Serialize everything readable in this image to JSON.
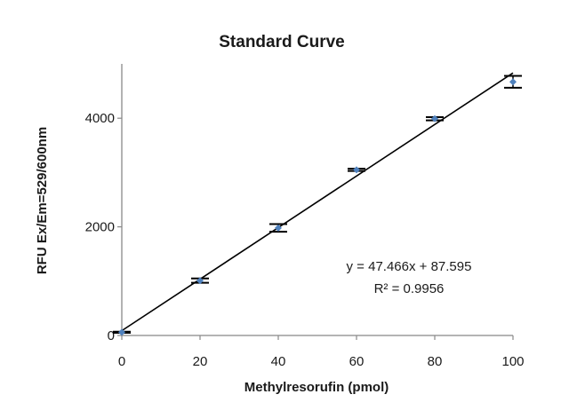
{
  "chart_data": {
    "type": "scatter",
    "title": "Standard Curve",
    "xlabel": "Methylresorufin (pmol)",
    "ylabel": "RFU Ex/Em=529/600nm",
    "xlim": [
      0,
      100
    ],
    "ylim": [
      0,
      5000
    ],
    "x_ticks": [
      0,
      20,
      40,
      60,
      80,
      100
    ],
    "y_ticks": [
      0,
      2000,
      4000
    ],
    "grid": false,
    "legend": "none",
    "series": [
      {
        "x": [
          0,
          20,
          40,
          60,
          80,
          100
        ],
        "y": [
          60,
          1010,
          1980,
          3050,
          3990,
          4670
        ],
        "error": [
          10,
          40,
          70,
          20,
          30,
          110
        ],
        "marker_color": "#4f81bd"
      }
    ],
    "trendline": {
      "slope": 47.466,
      "intercept": 87.595,
      "color": "#000000",
      "equation_label": "y = 47.466x + 87.595",
      "r2_label": "R² = 0.9956"
    }
  }
}
